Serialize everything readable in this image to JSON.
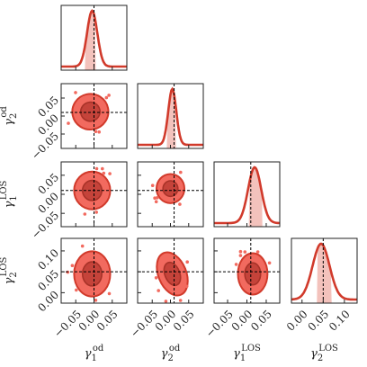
{
  "chart_data": {
    "type": "corner",
    "parameters": [
      {
        "symbol": "γ",
        "index": "1",
        "tag": "od",
        "ticks": [
          -0.05,
          0.0,
          0.05
        ],
        "tick_labels": [
          "−0.05",
          "0.00",
          "0.05"
        ],
        "range": [
          -0.09,
          0.09
        ],
        "truth": 0.0
      },
      {
        "symbol": "γ",
        "index": "2",
        "tag": "od",
        "ticks": [
          -0.05,
          0.0,
          0.05
        ],
        "tick_labels": [
          "−0.05",
          "0.00",
          "0.05"
        ],
        "range": [
          -0.09,
          0.09
        ],
        "truth": 0.01
      },
      {
        "symbol": "γ",
        "index": "1",
        "tag": "LOS",
        "ticks": [
          -0.05,
          0.0,
          0.05
        ],
        "tick_labels": [
          "−0.05",
          "0.00",
          "0.05"
        ],
        "range": [
          -0.085,
          0.085
        ],
        "truth": 0.01
      },
      {
        "symbol": "γ",
        "index": "2",
        "tag": "LOS",
        "ticks": [
          0.0,
          0.05,
          0.1
        ],
        "tick_labels": [
          "0.00",
          "0.05",
          "0.10"
        ],
        "range": [
          -0.025,
          0.13
        ],
        "truth": 0.05
      }
    ],
    "marginals": [
      {
        "mean": -0.005,
        "sigma": 0.014,
        "band": [
          -0.025,
          0.005
        ]
      },
      {
        "mean": 0.005,
        "sigma": 0.011,
        "band": [
          -0.01,
          0.015
        ]
      },
      {
        "mean": 0.02,
        "sigma": 0.017,
        "band": [
          0.005,
          0.04
        ]
      },
      {
        "mean": 0.045,
        "sigma": 0.02,
        "band": [
          0.035,
          0.07
        ]
      }
    ],
    "pairs": [
      {
        "x": 0,
        "y": 1,
        "mx": -0.01,
        "my": 0.012,
        "sx": 0.022,
        "sy": 0.022,
        "rho": 0.3
      },
      {
        "x": 0,
        "y": 2,
        "mx": -0.005,
        "my": 0.01,
        "sx": 0.022,
        "sy": 0.022,
        "rho": 0.0
      },
      {
        "x": 1,
        "y": 2,
        "mx": 0.0,
        "my": 0.015,
        "sx": 0.017,
        "sy": 0.017,
        "rho": 0.0
      },
      {
        "x": 0,
        "y": 3,
        "mx": -0.005,
        "my": 0.045,
        "sx": 0.022,
        "sy": 0.024,
        "rho": 0.0
      },
      {
        "x": 1,
        "y": 3,
        "mx": 0.005,
        "my": 0.045,
        "sx": 0.017,
        "sy": 0.024,
        "rho": 0.55
      },
      {
        "x": 2,
        "y": 3,
        "mx": 0.015,
        "my": 0.045,
        "sx": 0.017,
        "sy": 0.022,
        "rho": 0.0
      }
    ],
    "colors": {
      "line": "#d13a2b",
      "inner": "#c5433a",
      "outer": "#f26a5f",
      "band": "#f3c2bc",
      "truth": "#000000",
      "frame": "#222222"
    }
  }
}
